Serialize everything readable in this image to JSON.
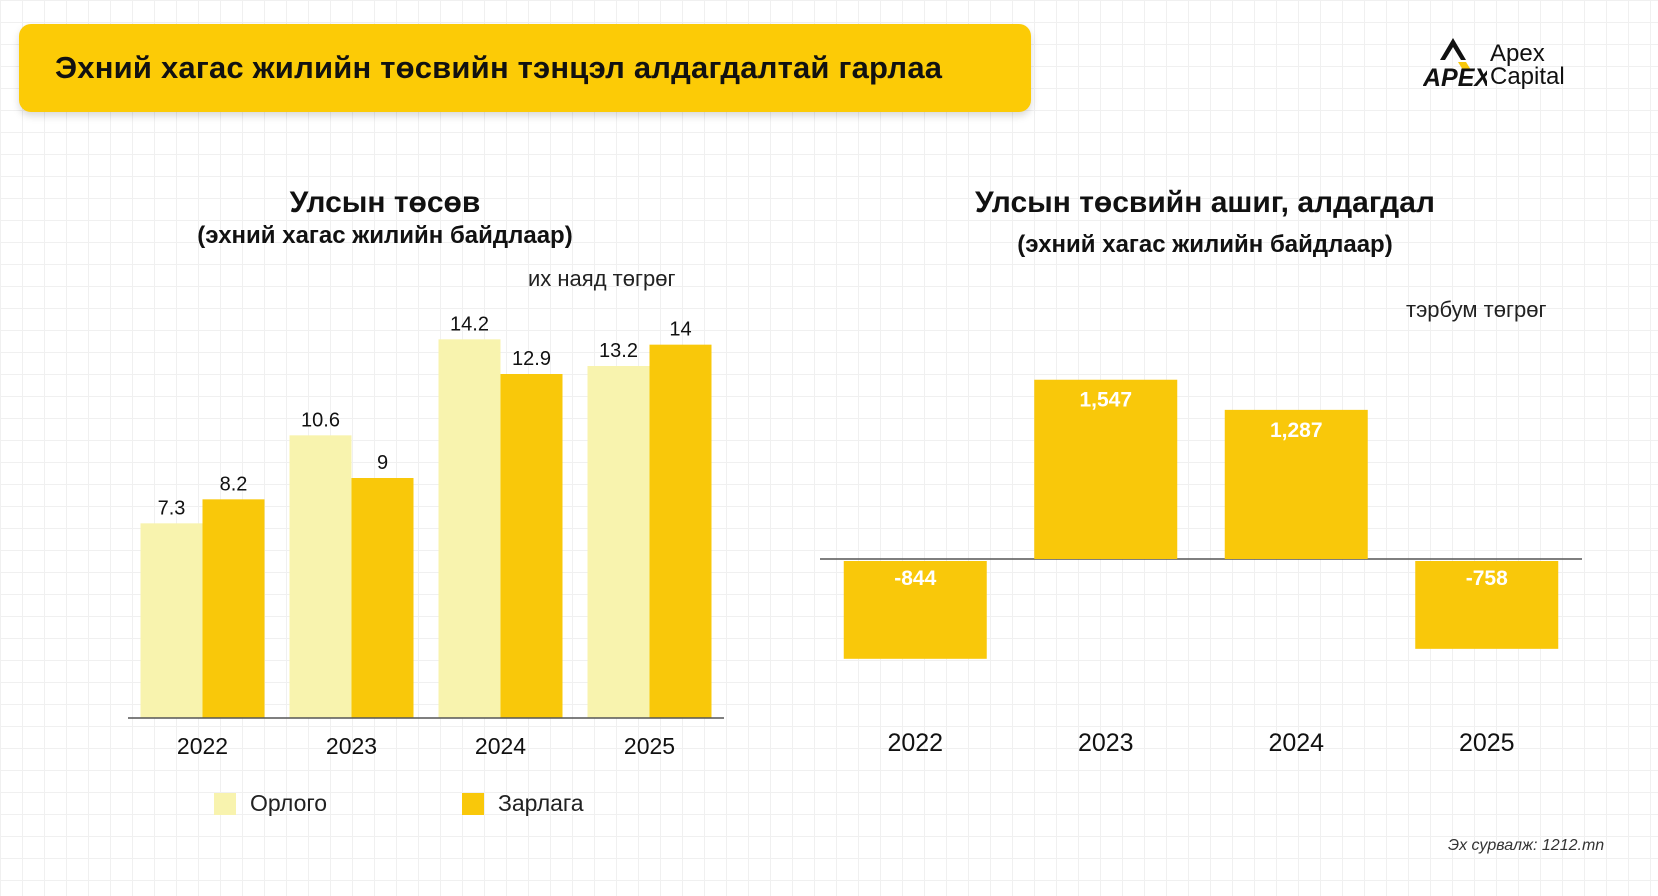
{
  "header": {
    "title": "Эхний хагас жилийн төсвийн тэнцэл алдагдалтай гарлаа"
  },
  "logo": {
    "mark_text": "APEX",
    "name_line1": "Apex",
    "name_line2": "Capital"
  },
  "colors": {
    "banner": "#FCCB06",
    "income": "#F8F3AE",
    "expense": "#F9C80A",
    "balance": "#F9C80A",
    "axis": "#555555",
    "text": "#111111",
    "balance_label": "#FFFFFF"
  },
  "chart_data": [
    {
      "type": "bar",
      "title": "Улсын төсөв",
      "subtitle": "(эхний хагас жилийн байдлаар)",
      "unit": "их наяд төгрөг",
      "categories": [
        "2022",
        "2023",
        "2024",
        "2025"
      ],
      "series": [
        {
          "name": "Орлого",
          "values": [
            7.3,
            10.6,
            14.2,
            13.2
          ]
        },
        {
          "name": "Зарлага",
          "values": [
            8.2,
            9,
            12.9,
            14
          ]
        }
      ],
      "value_labels": [
        [
          "7.3",
          "10.6",
          "14.2",
          "13.2"
        ],
        [
          "8.2",
          "9",
          "12.9",
          "14"
        ]
      ],
      "ylim": [
        0,
        15
      ],
      "grid": false,
      "legend_position": "bottom"
    },
    {
      "type": "bar",
      "title": "Улсын төсвийн ашиг, алдагдал",
      "subtitle": "(эхний хагас жилийн байдлаар)",
      "unit": "тэрбум төгрөг",
      "categories": [
        "2022",
        "2023",
        "2024",
        "2025"
      ],
      "values": [
        -844,
        1547,
        1287,
        -758
      ],
      "value_labels": [
        "-844",
        "1,547",
        "1,287",
        "-758"
      ],
      "ylim": [
        -1000,
        1700
      ],
      "grid": false
    }
  ],
  "footer": {
    "source": "Эх сурвалж: 1212.mn"
  }
}
